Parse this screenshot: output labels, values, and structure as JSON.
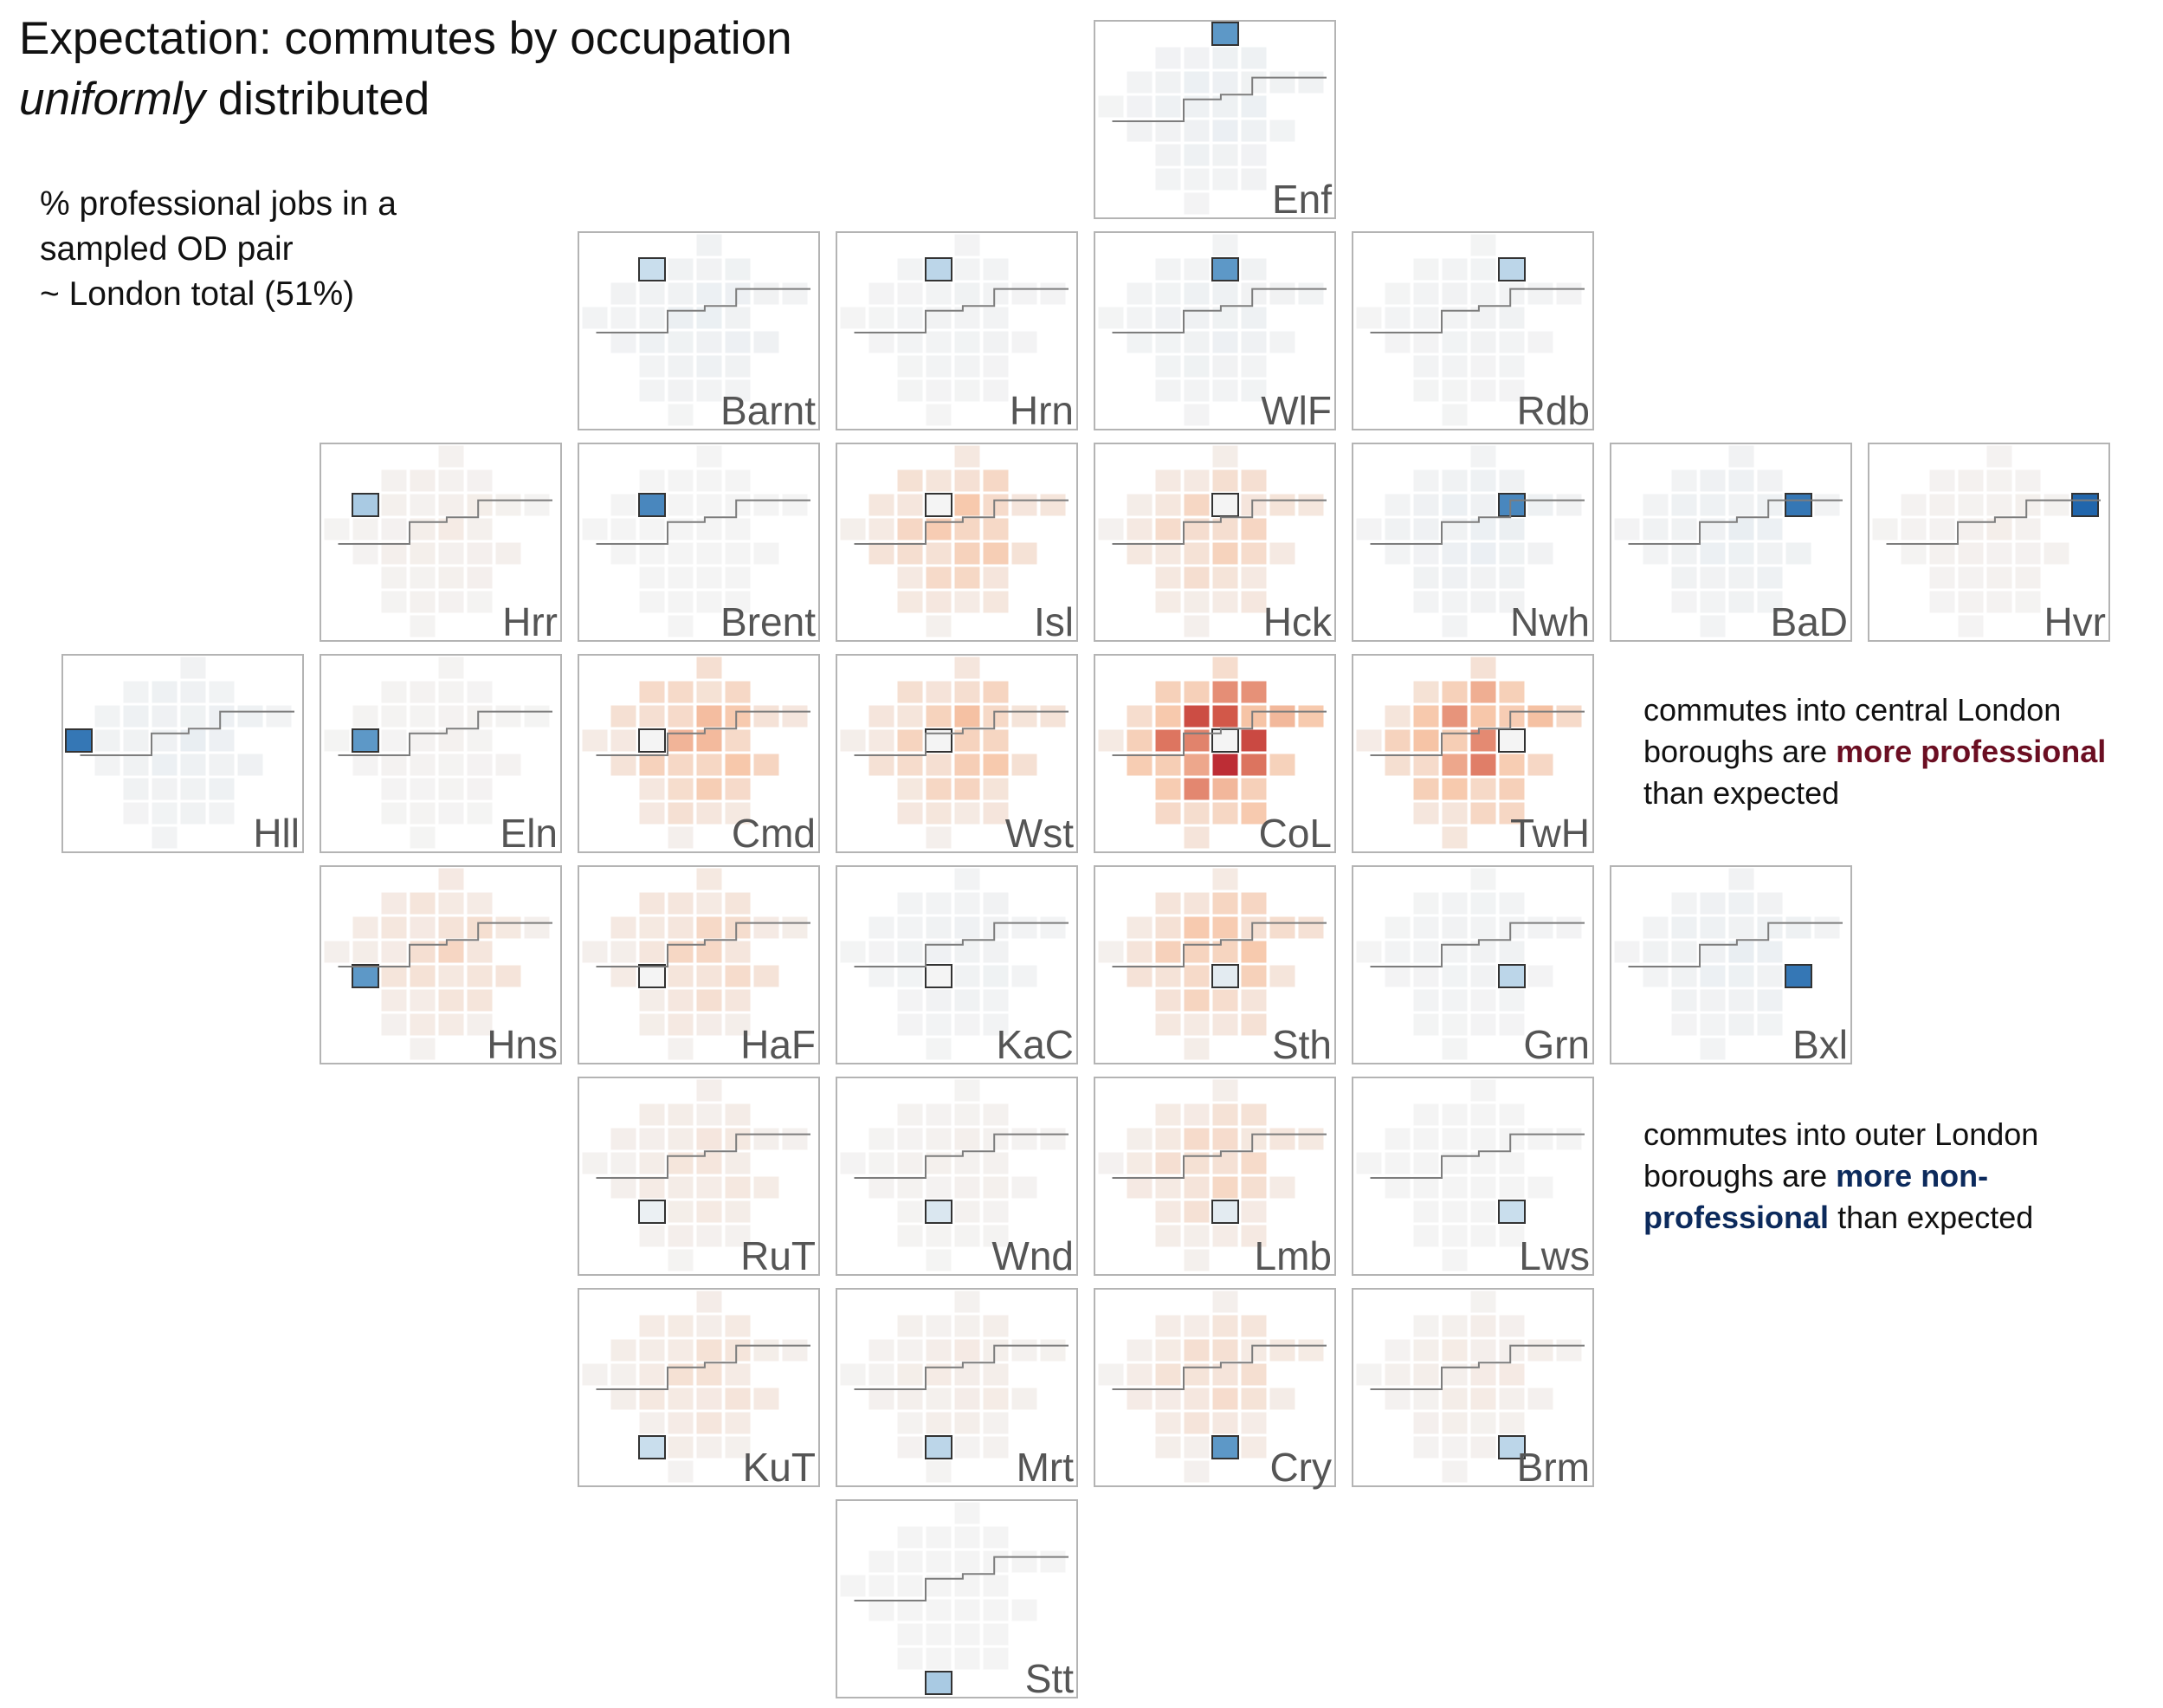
{
  "title": {
    "line1": "Expectation: commutes by occupation",
    "line2_em": "uniformly",
    "line2_rest": " distributed"
  },
  "subtitle": {
    "line1": "% professional jobs in a",
    "line2": "sampled OD pair",
    "line3": "~ London total (51%)"
  },
  "annotations": {
    "central": {
      "line1": "commutes into central London",
      "line2_pre": "boroughs are ",
      "line2_hl": "more professional",
      "line3": "than expected"
    },
    "outer": {
      "line1": "commutes into outer London",
      "line2_pre": "boroughs are ",
      "line2_hl": "more non-",
      "line3_hl": "professional",
      "line3_rest": " than expected"
    }
  },
  "colors": {
    "panel_border": "#b4b4b4",
    "cell_neutral": "#f3f3f3",
    "outline": "#7d7d7d",
    "selected_border": "#333333",
    "label": "#555555",
    "strong_red": "#b2182b",
    "strong_blue": "#2166ac"
  },
  "chart_data": {
    "type": "heatmap",
    "description_value": "signed deviation of professional-job share from London total; positive = more professional (red), negative = more non-professional (blue)",
    "boroughs": [
      {
        "label": "Enf",
        "gx": 4,
        "gy": 0
      },
      {
        "label": "Barnt",
        "gx": 2,
        "gy": 1
      },
      {
        "label": "Hrn",
        "gx": 3,
        "gy": 1
      },
      {
        "label": "WlF",
        "gx": 4,
        "gy": 1
      },
      {
        "label": "Rdb",
        "gx": 5,
        "gy": 1
      },
      {
        "label": "Hrr",
        "gx": 1,
        "gy": 2
      },
      {
        "label": "Brent",
        "gx": 2,
        "gy": 2
      },
      {
        "label": "Isl",
        "gx": 3,
        "gy": 2
      },
      {
        "label": "Hck",
        "gx": 4,
        "gy": 2
      },
      {
        "label": "Nwh",
        "gx": 5,
        "gy": 2
      },
      {
        "label": "BaD",
        "gx": 6,
        "gy": 2
      },
      {
        "label": "Hvr",
        "gx": 7,
        "gy": 2
      },
      {
        "label": "Hll",
        "gx": 0,
        "gy": 3
      },
      {
        "label": "Eln",
        "gx": 1,
        "gy": 3
      },
      {
        "label": "Cmd",
        "gx": 2,
        "gy": 3
      },
      {
        "label": "Wst",
        "gx": 3,
        "gy": 3
      },
      {
        "label": "CoL",
        "gx": 4,
        "gy": 3
      },
      {
        "label": "TwH",
        "gx": 5,
        "gy": 3
      },
      {
        "label": "Hns",
        "gx": 1,
        "gy": 4
      },
      {
        "label": "HaF",
        "gx": 2,
        "gy": 4
      },
      {
        "label": "KaC",
        "gx": 3,
        "gy": 4
      },
      {
        "label": "Sth",
        "gx": 4,
        "gy": 4
      },
      {
        "label": "Grn",
        "gx": 5,
        "gy": 4
      },
      {
        "label": "Bxl",
        "gx": 6,
        "gy": 4
      },
      {
        "label": "RuT",
        "gx": 2,
        "gy": 5
      },
      {
        "label": "Wnd",
        "gx": 3,
        "gy": 5
      },
      {
        "label": "Lmb",
        "gx": 4,
        "gy": 5
      },
      {
        "label": "Lws",
        "gx": 5,
        "gy": 5
      },
      {
        "label": "KuT",
        "gx": 2,
        "gy": 6
      },
      {
        "label": "Mrt",
        "gx": 3,
        "gy": 6
      },
      {
        "label": "Cry",
        "gx": 4,
        "gy": 6
      },
      {
        "label": "Brm",
        "gx": 5,
        "gy": 6
      },
      {
        "label": "Stt",
        "gx": 3,
        "gy": 7
      }
    ],
    "panel_values": {
      "Enf": {
        "own": -0.55,
        "base": -0.05
      },
      "Barnt": {
        "own": -0.25,
        "base": -0.05
      },
      "Hrn": {
        "own": -0.3,
        "base": -0.02
      },
      "WlF": {
        "own": -0.55,
        "base": -0.04
      },
      "Rdb": {
        "own": -0.3,
        "base": -0.02
      },
      "Hrr": {
        "own": -0.35,
        "base": 0.03
      },
      "Brent": {
        "own": -0.6,
        "base": 0.0
      },
      "Isl": {
        "own": 0.0,
        "base": 0.18
      },
      "Hck": {
        "own": 0.0,
        "base": 0.14
      },
      "Nwh": {
        "own": -0.6,
        "base": -0.05
      },
      "BaD": {
        "own": -0.65,
        "base": -0.05
      },
      "Hvr": {
        "own": -0.7,
        "base": 0.02
      },
      "Hll": {
        "own": -0.65,
        "base": -0.05
      },
      "Eln": {
        "own": -0.55,
        "base": 0.01
      },
      "Cmd": {
        "own": 0.0,
        "base": 0.22
      },
      "Wst": {
        "own": 0.0,
        "base": 0.2
      },
      "CoL": {
        "own": 0.0,
        "base": 0.45
      },
      "TwH": {
        "own": 0.0,
        "base": 0.32
      },
      "Hns": {
        "own": -0.55,
        "base": 0.1
      },
      "HaF": {
        "own": 0.0,
        "base": 0.12
      },
      "KaC": {
        "own": 0.0,
        "base": -0.03
      },
      "Sth": {
        "own": -0.1,
        "base": 0.2
      },
      "Grn": {
        "own": -0.3,
        "base": -0.02
      },
      "Bxl": {
        "own": -0.65,
        "base": -0.05
      },
      "RuT": {
        "own": -0.05,
        "base": 0.06
      },
      "Wnd": {
        "own": -0.15,
        "base": 0.02
      },
      "Lmb": {
        "own": -0.1,
        "base": 0.12
      },
      "Lws": {
        "own": -0.25,
        "base": 0.0
      },
      "KuT": {
        "own": -0.25,
        "base": 0.08
      },
      "Mrt": {
        "own": -0.3,
        "base": 0.04
      },
      "Cry": {
        "own": -0.55,
        "base": 0.1
      },
      "Brm": {
        "own": -0.3,
        "base": 0.04
      },
      "Stt": {
        "own": -0.35,
        "base": 0.0
      }
    },
    "value_range": [
      -0.7,
      0.45
    ]
  }
}
